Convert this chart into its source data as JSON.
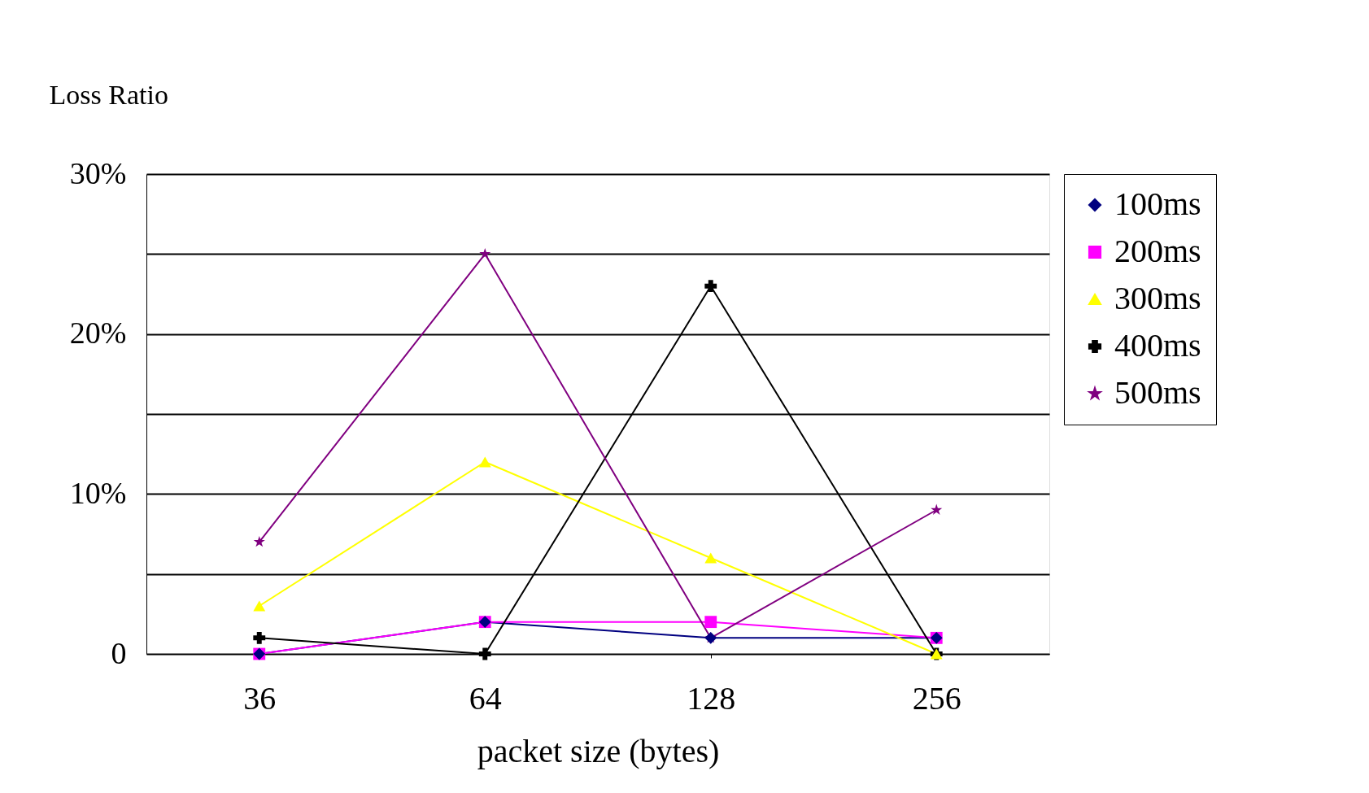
{
  "chart_data": {
    "type": "line",
    "ylabel": "Loss Ratio",
    "xlabel": "packet size (bytes)",
    "categories": [
      "36",
      "64",
      "128",
      "256"
    ],
    "series": [
      {
        "name": "100ms",
        "color": "#000080",
        "marker": "diamond",
        "values": [
          0,
          2,
          1,
          1
        ]
      },
      {
        "name": "200ms",
        "color": "#ff00ff",
        "marker": "square",
        "values": [
          0,
          2,
          2,
          1
        ]
      },
      {
        "name": "300ms",
        "color": "#ffff00",
        "marker": "triangle",
        "values": [
          3,
          12,
          6,
          0
        ]
      },
      {
        "name": "400ms",
        "color": "#000000",
        "marker": "cross",
        "values": [
          1,
          0,
          23,
          0
        ]
      },
      {
        "name": "500ms",
        "color": "#800080",
        "marker": "star",
        "values": [
          7,
          25,
          1,
          9
        ]
      }
    ],
    "ylim": [
      0,
      30
    ],
    "yticks": [
      0,
      {
        "value": 5,
        "label": null
      },
      {
        "value": 10,
        "label": "10%"
      },
      {
        "value": 15,
        "label": null
      },
      {
        "value": 20,
        "label": "20%"
      },
      {
        "value": 25,
        "label": null
      },
      {
        "value": 30,
        "label": "30%"
      }
    ],
    "grid": "y",
    "legend": "right",
    "line_style": "solid"
  }
}
